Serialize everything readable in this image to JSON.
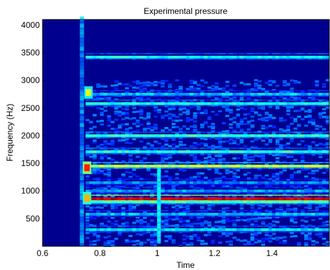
{
  "chart_data": {
    "type": "heatmap",
    "title": "Experimental pressure",
    "xlabel": "Time",
    "ylabel": "Frequency (Hz)",
    "xlim": [
      0.6,
      1.6
    ],
    "ylim": [
      0,
      4100
    ],
    "xticks": [
      0.6,
      0.8,
      1,
      1.2,
      1.4
    ],
    "yticks": [
      500,
      1000,
      1500,
      2000,
      2500,
      3000,
      3500,
      4000
    ],
    "colormap": "jet",
    "background_color": "#00008f",
    "onset_time": 0.75,
    "bands": [
      {
        "freq": 300,
        "intensity": 0.35
      },
      {
        "freq": 580,
        "intensity": 0.3
      },
      {
        "freq": 800,
        "intensity": 0.42
      },
      {
        "freq": 860,
        "intensity": 0.92
      },
      {
        "freq": 1000,
        "intensity": 0.28
      },
      {
        "freq": 1150,
        "intensity": 0.25
      },
      {
        "freq": 1450,
        "intensity": 0.55
      },
      {
        "freq": 1710,
        "intensity": 0.4
      },
      {
        "freq": 2000,
        "intensity": 0.42
      },
      {
        "freq": 2580,
        "intensity": 0.38
      },
      {
        "freq": 2750,
        "intensity": 0.3
      },
      {
        "freq": 3420,
        "intensity": 0.38
      }
    ],
    "hotspots": [
      {
        "time": 0.755,
        "freq": 1420,
        "intensity": 0.85
      },
      {
        "time": 0.76,
        "freq": 2780,
        "intensity": 0.6
      },
      {
        "time": 0.755,
        "freq": 870,
        "intensity": 0.7
      }
    ]
  }
}
